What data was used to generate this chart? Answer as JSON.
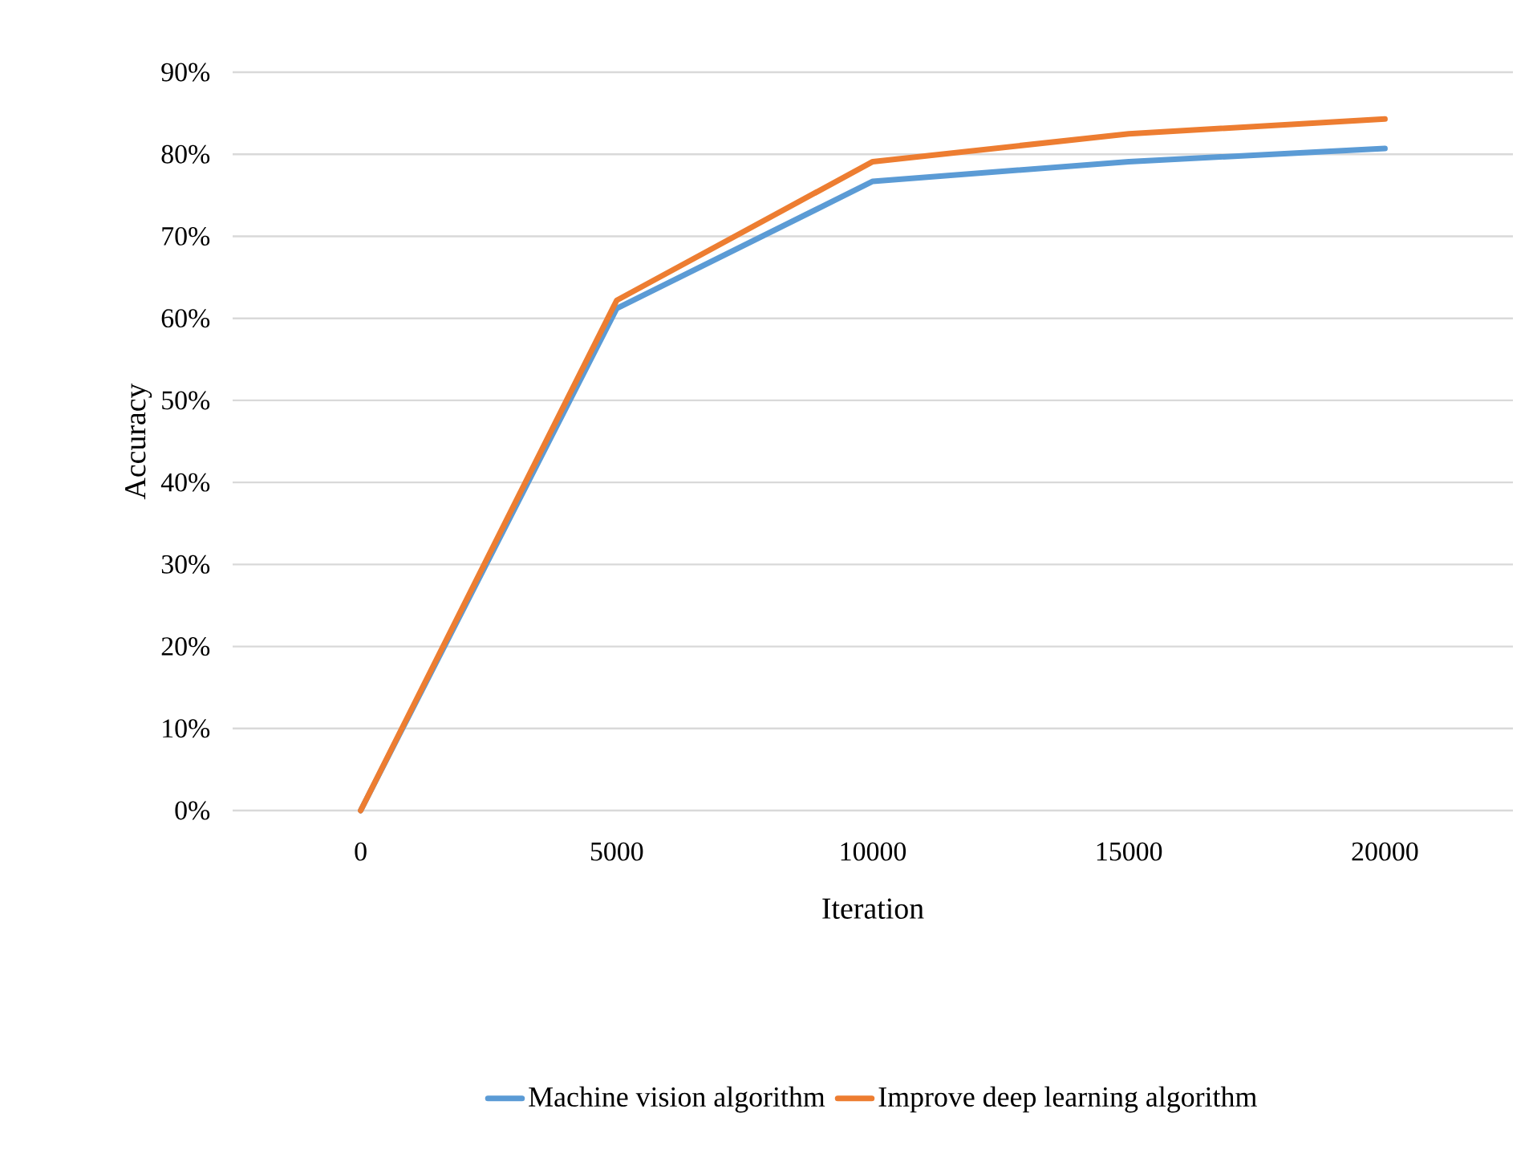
{
  "chart_data": {
    "type": "line",
    "xlabel": "Iteration",
    "ylabel": "Accuracy",
    "categories": [
      "0",
      "5000",
      "10000",
      "15000",
      "20000"
    ],
    "series": [
      {
        "name": "Machine vision algorithm",
        "color": "#5b9bd5",
        "values": [
          0,
          61.2,
          76.7,
          79.1,
          80.7
        ]
      },
      {
        "name": "Improve deep learning algorithm",
        "color": "#ed7d31",
        "values": [
          0,
          62.2,
          79.1,
          82.5,
          84.3
        ]
      }
    ],
    "ylim": [
      0,
      90
    ],
    "yticks": [
      {
        "value": 0,
        "label": "0%"
      },
      {
        "value": 10,
        "label": "10%"
      },
      {
        "value": 20,
        "label": "20%"
      },
      {
        "value": 30,
        "label": "30%"
      },
      {
        "value": 40,
        "label": "40%"
      },
      {
        "value": 50,
        "label": "50%"
      },
      {
        "value": 60,
        "label": "60%"
      },
      {
        "value": 70,
        "label": "70%"
      },
      {
        "value": 80,
        "label": "80%"
      },
      {
        "value": 90,
        "label": "90%"
      }
    ],
    "grid": "y",
    "legend": "bottom",
    "marker": "none",
    "line_style": "solid"
  }
}
